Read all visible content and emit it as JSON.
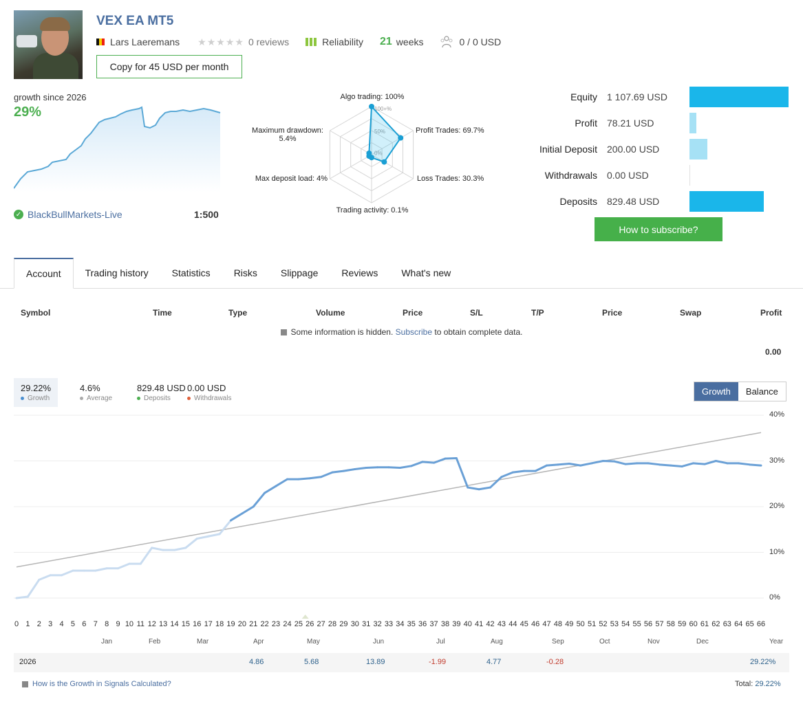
{
  "header": {
    "title": "VEX EA MT5",
    "author": "Lars Laeremans",
    "reviews": "0 reviews",
    "reliability_label": "Reliability",
    "weeks_num": "21",
    "weeks_label": "weeks",
    "subscribers": "0 / 0 USD",
    "copy_button": "Copy for 45 USD per month"
  },
  "summary": {
    "growth_label": "growth since 2026",
    "growth_value": "29%",
    "broker": "BlackBullMarkets-Live",
    "leverage": "1:500"
  },
  "radar": {
    "labels": {
      "algo": "Algo trading: 100%",
      "profit": "Profit Trades: 69.7%",
      "loss": "Loss Trades: 30.3%",
      "activity": "Trading activity: 0.1%",
      "load": "Max deposit load: 4%",
      "drawdown_1": "Maximum drawdown:",
      "drawdown_2": "5.4%"
    },
    "ring_labels": [
      "100+%",
      "50%",
      "0%"
    ],
    "values": [
      100,
      69.7,
      30.3,
      0.1,
      4,
      5.4
    ]
  },
  "stats": [
    {
      "label": "Equity",
      "value": "1 107.69 USD",
      "fill": 1.0,
      "color": "#1ab6ea"
    },
    {
      "label": "Profit",
      "value": "78.21 USD",
      "fill": 0.07,
      "color": "#a6e1f5"
    },
    {
      "label": "Initial Deposit",
      "value": "200.00 USD",
      "fill": 0.18,
      "color": "#a6e1f5"
    },
    {
      "label": "Withdrawals",
      "value": "0.00 USD",
      "fill": 0.0,
      "color": "#a6e1f5"
    },
    {
      "label": "Deposits",
      "value": "829.48 USD",
      "fill": 0.75,
      "color": "#1ab6ea"
    }
  ],
  "subscribe_button": "How to subscribe?",
  "tabs": [
    "Account",
    "Trading history",
    "Statistics",
    "Risks",
    "Slippage",
    "Reviews",
    "What's new"
  ],
  "table": {
    "headers": [
      "Symbol",
      "Time",
      "Type",
      "Volume",
      "Price",
      "S/L",
      "T/P",
      "Price",
      "Swap",
      "Profit"
    ],
    "note_pre": "Some information is hidden.",
    "note_link": "Subscribe",
    "note_post": "to obtain complete data.",
    "total": "0.00"
  },
  "legend": [
    {
      "value": "29.22%",
      "label": "Growth",
      "color": "#4a8fd0"
    },
    {
      "value": "4.6%",
      "label": "Average",
      "color": "#aaaaaa"
    },
    {
      "value": "829.48 USD",
      "label": "Deposits",
      "color": "#4caf50"
    },
    {
      "value": "0.00 USD",
      "label": "Withdrawals",
      "color": "#e0603a"
    }
  ],
  "toggle": {
    "growth": "Growth",
    "balance": "Balance"
  },
  "chart_data": {
    "type": "line",
    "y_ticks": [
      "40%",
      "30%",
      "20%",
      "10%",
      "0%"
    ],
    "ylim": [
      -1,
      40
    ],
    "x_ticks": [
      "0",
      "1",
      "2",
      "3",
      "4",
      "5",
      "6",
      "7",
      "8",
      "9",
      "10",
      "11",
      "12",
      "13",
      "14",
      "15",
      "16",
      "17",
      "18",
      "19",
      "20",
      "21",
      "22",
      "23",
      "24",
      "25",
      "26",
      "27",
      "28",
      "29",
      "30",
      "31",
      "32",
      "33",
      "34",
      "35",
      "36",
      "37",
      "38",
      "39",
      "40",
      "41",
      "42",
      "43",
      "44",
      "45",
      "46",
      "47",
      "48",
      "49",
      "50",
      "51",
      "52",
      "53",
      "54",
      "55",
      "56",
      "57",
      "58",
      "59",
      "60",
      "61",
      "62",
      "63",
      "64",
      "65",
      "66"
    ],
    "months": [
      "Jan",
      "Feb",
      "Mar",
      "Apr",
      "May",
      "Jun",
      "Jul",
      "Aug",
      "Sep",
      "Oct",
      "Nov",
      "Dec",
      "Year"
    ],
    "series": [
      {
        "name": "Growth",
        "x": [
          0,
          1,
          2,
          3,
          4,
          5,
          6,
          7,
          8,
          9,
          10,
          11,
          12,
          13,
          14,
          15,
          16,
          17,
          18,
          19,
          20,
          21,
          22,
          23,
          24,
          25,
          26,
          27,
          28,
          29,
          30,
          31,
          32,
          33,
          34,
          35,
          36,
          37,
          38,
          39,
          40,
          41,
          42,
          43,
          44,
          45,
          46,
          47,
          48,
          49,
          50,
          51,
          52,
          53,
          54,
          55,
          56,
          57,
          58,
          59,
          60,
          61,
          62,
          63,
          64,
          65,
          66
        ],
        "values": [
          0,
          0.3,
          4,
          5,
          5,
          6,
          6,
          6,
          6.5,
          6.5,
          7.5,
          7.5,
          11,
          10.5,
          10.5,
          11,
          13,
          13.5,
          14,
          17,
          18.5,
          20,
          23,
          24.5,
          26,
          26,
          26.2,
          26.5,
          27.5,
          27.8,
          28.2,
          28.5,
          28.6,
          28.6,
          28.5,
          28.9,
          29.8,
          29.6,
          30.5,
          30.6,
          24.2,
          23.8,
          24.2,
          26.5,
          27.5,
          27.8,
          27.8,
          29,
          29.2,
          29.4,
          29,
          29.5,
          30,
          29.9,
          29.3,
          29.5,
          29.5,
          29.2,
          29,
          28.8,
          29.5,
          29.3,
          30,
          29.5,
          29.5,
          29.2,
          29
        ]
      },
      {
        "name": "Average",
        "x": [
          0,
          66
        ],
        "values": [
          6.8,
          36.2
        ]
      }
    ]
  },
  "year_row": {
    "year": "2026",
    "cells": [
      {
        "month": "Apr",
        "value": "4.86",
        "sign": "pos"
      },
      {
        "month": "May",
        "value": "5.68",
        "sign": "pos"
      },
      {
        "month": "Jun",
        "value": "13.89",
        "sign": "pos"
      },
      {
        "month": "Jul",
        "value": "-1.99",
        "sign": "neg"
      },
      {
        "month": "Aug",
        "value": "4.77",
        "sign": "pos"
      },
      {
        "month": "Sep",
        "value": "-0.28",
        "sign": "neg"
      }
    ],
    "year_total": "29.22%"
  },
  "footer": {
    "link": "How is the Growth in Signals Calculated?",
    "total_label": "Total:",
    "total_value": "29.22%"
  }
}
